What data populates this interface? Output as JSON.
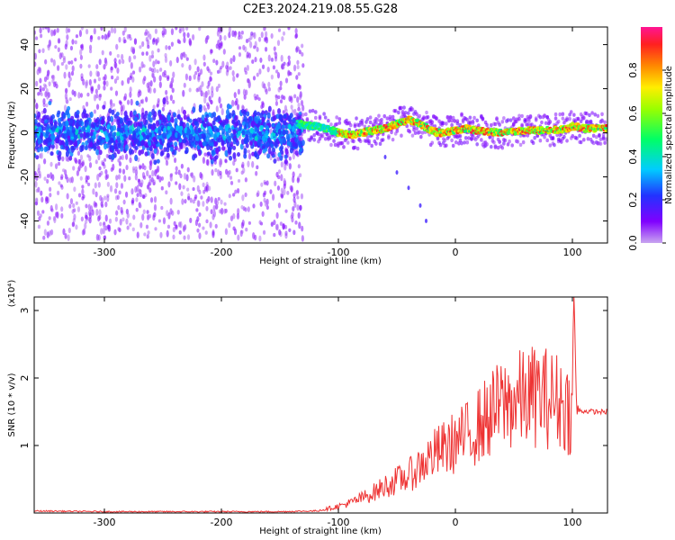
{
  "figure": {
    "title": "C2E3.2024.219.08.55.G28"
  },
  "chart_data": [
    {
      "type": "heatmap",
      "title": "C2E3.2024.219.08.55.G28",
      "xlabel": "Height of straight line (km)",
      "ylabel": "Frequency (Hz)",
      "xlim": [
        -360,
        130
      ],
      "ylim": [
        -50,
        48
      ],
      "x_ticks": [
        -300,
        -200,
        -100,
        0,
        100
      ],
      "y_ticks": [
        -40,
        -20,
        0,
        20,
        40
      ],
      "grid": false,
      "colormap": "rainbow (purple-blue-cyan-green-yellow-orange-red-magenta)",
      "colorbar": {
        "label": "Normalized spectral amplitude",
        "range": [
          0.0,
          1.0
        ],
        "ticks": [
          0.0,
          0.2,
          0.4,
          0.6,
          0.8
        ]
      },
      "ridge": {
        "x": [
          -135,
          -120,
          -110,
          -100,
          -90,
          -80,
          -70,
          -60,
          -50,
          -40,
          -30,
          -20,
          -15,
          -10,
          0,
          10,
          20,
          40,
          60,
          80,
          95,
          100,
          110,
          130
        ],
        "frequency": [
          4,
          3,
          2,
          0,
          -1,
          0,
          1,
          2,
          4,
          6,
          4,
          1,
          0,
          0,
          1,
          2,
          1,
          0,
          1,
          1,
          2,
          3,
          2,
          2
        ]
      },
      "low_height_noise_region": {
        "x_range": [
          -360,
          -130
        ],
        "frequency_spread": [
          -48,
          48
        ],
        "amplitude": [
          0.05,
          0.35
        ]
      },
      "secondary_trace": {
        "x": [
          -60,
          -50,
          -40,
          -30,
          -25
        ],
        "frequency": [
          -11,
          -18,
          -25,
          -33,
          -40
        ]
      }
    },
    {
      "type": "line",
      "xlabel": "Height of straight line (km)",
      "ylabel": "SNR (10 * v/v)",
      "y_scale_label": "(x10⁴)",
      "xlim": [
        -360,
        130
      ],
      "ylim": [
        0,
        3.2
      ],
      "x_ticks": [
        -300,
        -200,
        -100,
        0,
        100
      ],
      "y_ticks": [
        1,
        2,
        3
      ],
      "grid": false,
      "color": "#ee3333",
      "series": [
        {
          "x": [
            -360,
            -300,
            -250,
            -200,
            -150,
            -120,
            -110,
            -100,
            -90,
            -80,
            -70,
            -60,
            -50,
            -40,
            -30,
            -20,
            -10,
            0,
            10,
            20,
            30,
            40,
            50,
            60,
            70,
            80,
            90,
            100,
            101,
            102,
            103,
            104,
            105,
            110,
            120,
            130
          ],
          "values": [
            0.03,
            0.02,
            0.02,
            0.02,
            0.02,
            0.03,
            0.06,
            0.1,
            0.15,
            0.22,
            0.3,
            0.4,
            0.48,
            0.55,
            0.7,
            0.85,
            0.95,
            1.05,
            1.15,
            1.3,
            1.45,
            1.6,
            1.65,
            1.7,
            1.75,
            1.7,
            1.65,
            1.5,
            3.3,
            2.9,
            1.8,
            1.52,
            1.52,
            1.51,
            1.5,
            1.5
          ]
        }
      ]
    }
  ]
}
